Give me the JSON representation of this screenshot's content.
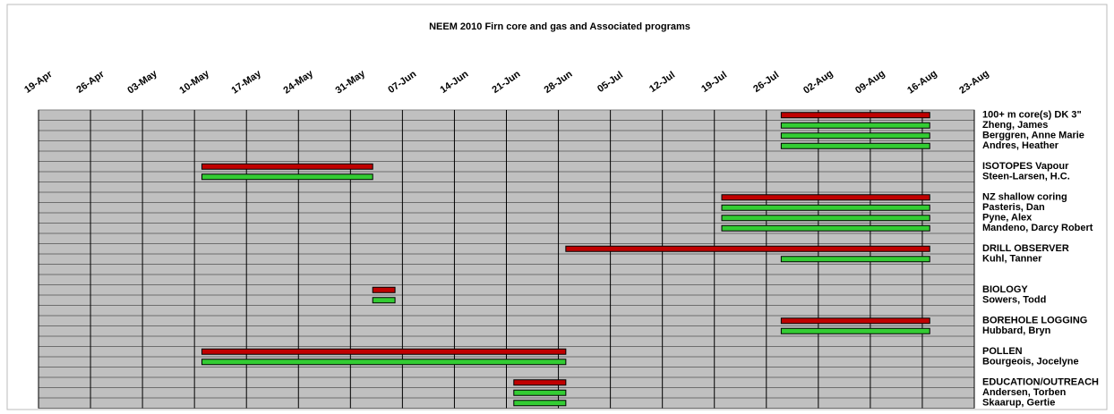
{
  "chart_data": {
    "type": "gantt",
    "title": "NEEM 2010 Firn core and gas and Associated programs",
    "xlim": [
      "19-Apr",
      "23-Aug"
    ],
    "xticks": [
      "19-Apr",
      "26-Apr",
      "03-May",
      "10-May",
      "17-May",
      "24-May",
      "31-May",
      "07-Jun",
      "14-Jun",
      "21-Jun",
      "28-Jun",
      "05-Jul",
      "12-Jul",
      "19-Jul",
      "26-Jul",
      "02-Aug",
      "09-Aug",
      "16-Aug",
      "23-Aug"
    ],
    "grid": true,
    "rows": [
      {
        "label": "100+ m  core(s) DK 3\"",
        "start": "28-Jul",
        "end": "17-Aug",
        "color": "#c00000"
      },
      {
        "label": "Zheng, James",
        "start": "28-Jul",
        "end": "17-Aug",
        "color": "#33cc33"
      },
      {
        "label": "Berggren, Anne Marie",
        "start": "28-Jul",
        "end": "17-Aug",
        "color": "#33cc33"
      },
      {
        "label": "Andres, Heather",
        "start": "28-Jul",
        "end": "17-Aug",
        "color": "#33cc33"
      },
      {
        "label": null
      },
      {
        "label": "ISOTOPES Vapour",
        "start": "11-May",
        "end": "03-Jun",
        "color": "#c00000"
      },
      {
        "label": "Steen-Larsen, H.C.",
        "start": "11-May",
        "end": "03-Jun",
        "color": "#33cc33"
      },
      {
        "label": null
      },
      {
        "label": "NZ shallow coring",
        "start": "20-Jul",
        "end": "17-Aug",
        "color": "#c00000"
      },
      {
        "label": "Pasteris, Dan",
        "start": "20-Jul",
        "end": "17-Aug",
        "color": "#33cc33"
      },
      {
        "label": "Pyne, Alex",
        "start": "20-Jul",
        "end": "17-Aug",
        "color": "#33cc33"
      },
      {
        "label": "Mandeno, Darcy Robert",
        "start": "20-Jul",
        "end": "17-Aug",
        "color": "#33cc33"
      },
      {
        "label": null
      },
      {
        "label": "DRILL OBSERVER",
        "start": "29-Jun",
        "end": "17-Aug",
        "color": "#c00000"
      },
      {
        "label": "Kuhl, Tanner",
        "start": "28-Jul",
        "end": "17-Aug",
        "color": "#33cc33"
      },
      {
        "label": null
      },
      {
        "label": null
      },
      {
        "label": "BIOLOGY",
        "start": "03-Jun",
        "end": "06-Jun",
        "color": "#c00000"
      },
      {
        "label": "Sowers, Todd",
        "start": "03-Jun",
        "end": "06-Jun",
        "color": "#33cc33"
      },
      {
        "label": null
      },
      {
        "label": "BOREHOLE LOGGING",
        "start": "28-Jul",
        "end": "17-Aug",
        "color": "#c00000"
      },
      {
        "label": "Hubbard, Bryn",
        "start": "28-Jul",
        "end": "17-Aug",
        "color": "#33cc33"
      },
      {
        "label": null
      },
      {
        "label": "POLLEN",
        "start": "11-May",
        "end": "29-Jun",
        "color": "#c00000"
      },
      {
        "label": "Bourgeois, Jocelyne",
        "start": "11-May",
        "end": "29-Jun",
        "color": "#33cc33"
      },
      {
        "label": null
      },
      {
        "label": "EDUCATION/OUTREACH",
        "start": "22-Jun",
        "end": "29-Jun",
        "color": "#c00000"
      },
      {
        "label": "Andersen, Torben",
        "start": "22-Jun",
        "end": "29-Jun",
        "color": "#33cc33"
      },
      {
        "label": "Skaarup, Gertie",
        "start": "22-Jun",
        "end": "29-Jun",
        "color": "#33cc33"
      }
    ]
  }
}
